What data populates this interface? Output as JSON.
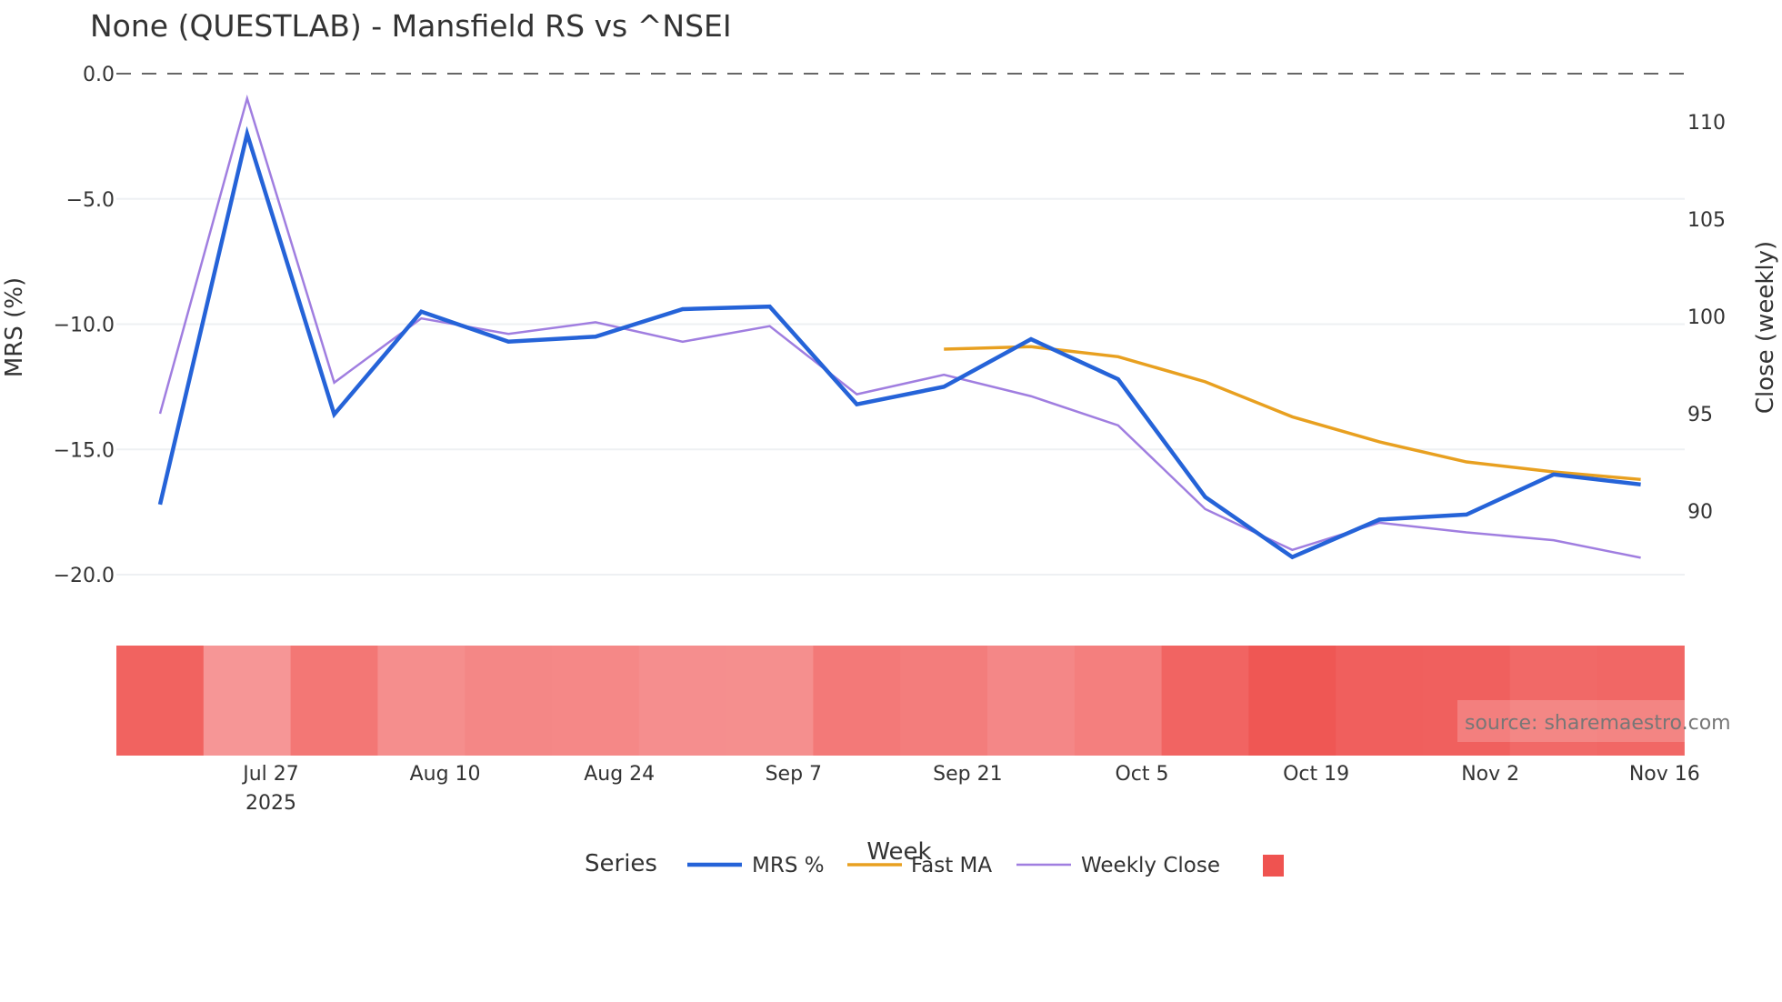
{
  "chart_data": {
    "type": "line",
    "title": "None (QUESTLAB) - Mansfield RS vs ^NSEI",
    "xlabel": "Week",
    "ylabel": "MRS (%)",
    "y2label": "Close (weekly)",
    "ylim": [
      -22.5,
      0.5
    ],
    "y2lim": [
      86,
      112.5
    ],
    "yticks": [
      0,
      -5,
      -10,
      -15,
      -20
    ],
    "ytick_labels": [
      "0.0",
      "−5.0",
      "−10.0",
      "−15.0",
      "−20.0"
    ],
    "y2ticks": [
      90,
      95,
      100,
      105,
      110
    ],
    "y2tick_labels": [
      "90",
      "95",
      "100",
      "105",
      "110"
    ],
    "x": [
      "2025-07-18",
      "2025-07-25",
      "2025-08-01",
      "2025-08-08",
      "2025-08-15",
      "2025-08-22",
      "2025-08-29",
      "2025-09-05",
      "2025-09-12",
      "2025-09-19",
      "2025-09-26",
      "2025-10-03",
      "2025-10-10",
      "2025-10-17",
      "2025-10-24",
      "2025-10-31",
      "2025-11-07",
      "2025-11-14"
    ],
    "xtick_labels": [
      "Jul 27",
      "Aug 10",
      "Aug 24",
      "Sep 7",
      "Sep 21",
      "Oct 5",
      "Oct 19",
      "Nov 2",
      "Nov 16"
    ],
    "xtick_year": "2025",
    "grid": true,
    "zero_line": 0,
    "series": [
      {
        "name": "MRS %",
        "axis": "left",
        "color": "#2563d8",
        "values": [
          -17.2,
          -2.4,
          -13.6,
          -9.5,
          -10.7,
          -10.5,
          -9.4,
          -9.3,
          -13.2,
          -12.5,
          -10.6,
          -12.2,
          -16.9,
          -19.3,
          -17.8,
          -17.6,
          -16.0,
          -16.4
        ]
      },
      {
        "name": "Fast MA",
        "axis": "left",
        "color": "#e8a020",
        "values": [
          null,
          null,
          null,
          null,
          null,
          null,
          null,
          null,
          null,
          -11.0,
          -10.9,
          -11.3,
          -12.3,
          -13.7,
          -14.7,
          -15.5,
          -15.9,
          -16.2
        ]
      },
      {
        "name": "Weekly Close",
        "axis": "right",
        "color": "#a07ee0",
        "values": [
          95.0,
          111.2,
          96.6,
          99.9,
          99.1,
          99.7,
          98.7,
          99.5,
          96.0,
          97.0,
          95.9,
          94.4,
          90.1,
          88.0,
          89.4,
          88.9,
          88.5,
          87.6
        ]
      }
    ],
    "heatmap": {
      "name": "",
      "z_source": "MRS %",
      "color_low": "#ef5350",
      "color_high": "#f69696"
    },
    "legend": {
      "title": "Series",
      "placement": "bottom-center"
    },
    "annotation": "source: sharemaestro.com"
  }
}
